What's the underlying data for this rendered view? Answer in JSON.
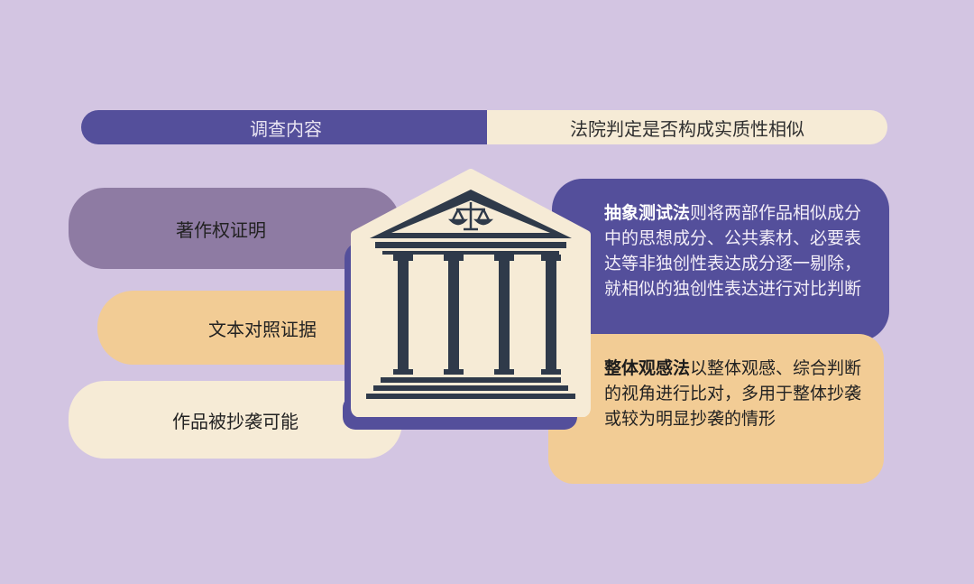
{
  "header": {
    "left_label": "调查内容",
    "right_label": "法院判定是否构成实质性相似"
  },
  "evidence_items": [
    {
      "label": "著作权证明"
    },
    {
      "label": "文本对照证据"
    },
    {
      "label": "作品被抄袭可能"
    }
  ],
  "methods": {
    "abstraction": {
      "keyword": "抽象测试法",
      "text": "则将两部作品相似成分中的思想成分、公共素材、必要表达等非独创性表达成分逐一剔除，就相似的独创性表达进行对比判断"
    },
    "overall": {
      "keyword": "整体观感法",
      "text": "以整体观感、综合判断的视角进行比对，多用于整体抄袭或较为明显抄袭的情形"
    }
  },
  "colors": {
    "background": "#d3c5e2",
    "purple": "#544f9b",
    "cream": "#f6ebd6",
    "orange": "#f2cc95",
    "mauve": "#8e7ba3",
    "icon": "#2f3a4a"
  },
  "icons": {
    "building": "courthouse-icon",
    "scales": "scales-of-justice-icon"
  }
}
